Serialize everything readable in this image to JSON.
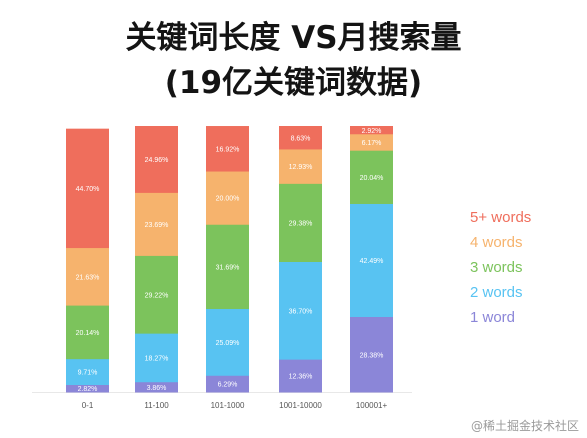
{
  "title": "关键词长度 VS月搜索量",
  "subtitle": "(19亿关键词数据)",
  "watermark": "@稀土掘金技术社区",
  "chart_data": {
    "type": "bar",
    "stacked": true,
    "normalized": true,
    "categories": [
      "0-1",
      "11-100",
      "101-1000",
      "1001-10000",
      "100001+"
    ],
    "series": [
      {
        "name": "1 word",
        "color": "#8b86d8",
        "values": [
          2.82,
          3.86,
          6.29,
          12.36,
          28.38
        ]
      },
      {
        "name": "2 words",
        "color": "#58c3f2",
        "values": [
          9.71,
          18.27,
          25.09,
          36.7,
          42.49
        ]
      },
      {
        "name": "3 words",
        "color": "#7cc35c",
        "values": [
          20.14,
          29.22,
          31.69,
          29.38,
          20.04
        ]
      },
      {
        "name": "4 words",
        "color": "#f6b36d",
        "values": [
          21.63,
          23.69,
          20.0,
          12.93,
          6.17
        ]
      },
      {
        "name": "5+ words",
        "color": "#ef6e5c",
        "values": [
          44.7,
          24.96,
          16.92,
          8.63,
          2.92
        ]
      }
    ],
    "labels": [
      [
        "2.82%",
        "9.71%",
        "20.14%",
        "21.63%",
        "44.70%"
      ],
      [
        "3.86%",
        "18.27%",
        "29.22%",
        "23.69%",
        "24.96%"
      ],
      [
        "6.29%",
        "25.09%",
        "31.69%",
        "20.00%",
        "16.92%"
      ],
      [
        "12.36%",
        "36.70%",
        "29.38%",
        "12.93%",
        "8.63%"
      ],
      [
        "28.38%",
        "42.49%",
        "20.04%",
        "6.17%",
        "2.92%"
      ]
    ],
    "legend": [
      "5+ words",
      "4 words",
      "3 words",
      "2 words",
      "1 word"
    ],
    "legend_position": "right"
  }
}
